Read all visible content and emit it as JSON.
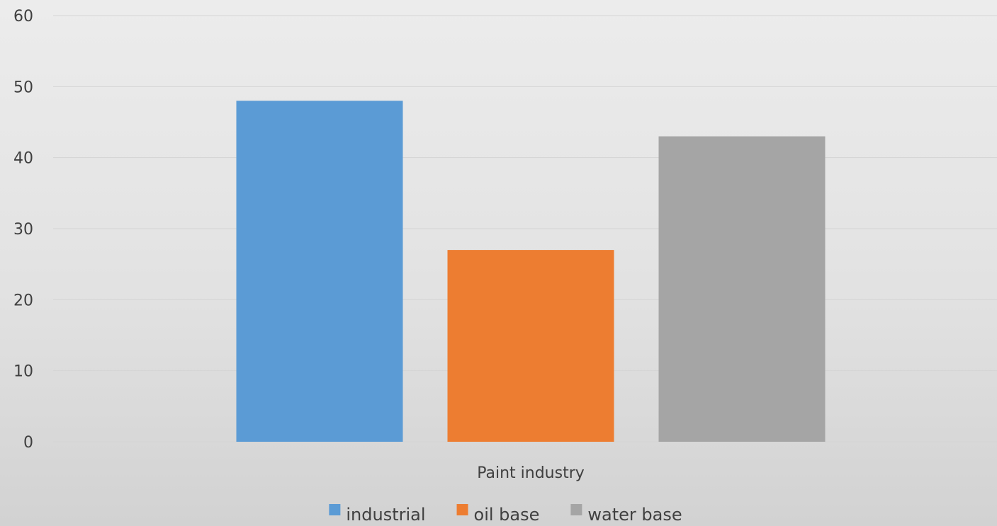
{
  "chart_data": {
    "type": "bar",
    "title": "",
    "xlabel": "",
    "ylabel": "",
    "categories": [
      "Paint industry"
    ],
    "series": [
      {
        "name": "industrial",
        "values": [
          48
        ],
        "color": "#5b9bd5"
      },
      {
        "name": "oil base",
        "values": [
          27
        ],
        "color": "#ed7d31"
      },
      {
        "name": "water base",
        "values": [
          43
        ],
        "color": "#a5a5a5"
      }
    ],
    "ylim": [
      0,
      60
    ],
    "yticks": [
      0,
      10,
      20,
      30,
      40,
      50,
      60
    ],
    "grid": true,
    "legend_position": "bottom-center"
  }
}
